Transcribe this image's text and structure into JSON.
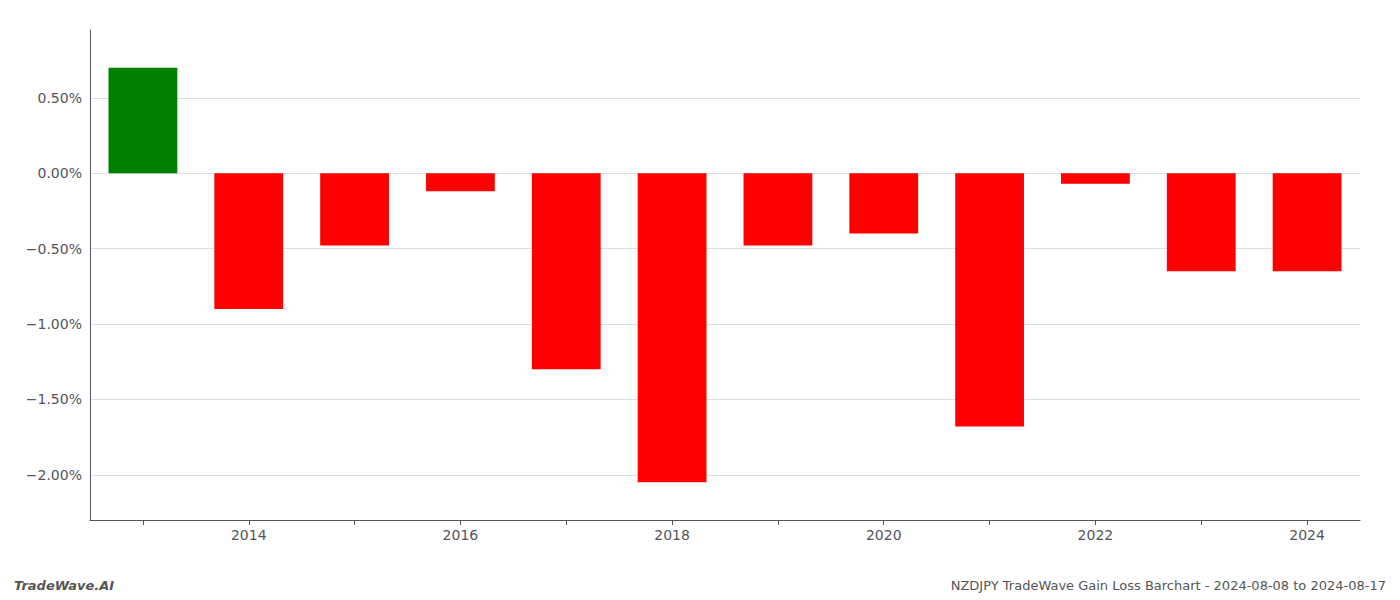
{
  "chart_data": {
    "type": "bar",
    "categories": [
      null,
      "2014",
      null,
      "2016",
      null,
      "2018",
      null,
      "2020",
      null,
      "2022",
      null,
      "2024"
    ],
    "values": [
      0.7,
      -0.9,
      -0.48,
      -0.12,
      -1.3,
      -2.05,
      -0.48,
      -0.4,
      -1.68,
      -0.07,
      -0.65,
      -0.65
    ],
    "colors": [
      "#008000",
      "#ff0000",
      "#ff0000",
      "#ff0000",
      "#ff0000",
      "#ff0000",
      "#ff0000",
      "#ff0000",
      "#ff0000",
      "#ff0000",
      "#ff0000",
      "#ff0000"
    ],
    "ylim": [
      -2.3,
      0.95
    ],
    "yticks": [
      {
        "value": -2.0,
        "label": "−2.00%"
      },
      {
        "value": -1.5,
        "label": "−1.50%"
      },
      {
        "value": -1.0,
        "label": "−1.00%"
      },
      {
        "value": -0.5,
        "label": "−0.50%"
      },
      {
        "value": 0.0,
        "label": "0.00%"
      },
      {
        "value": 0.5,
        "label": "0.50%"
      }
    ],
    "grid": true,
    "annotations": [
      "TradeWave.AI",
      "NZDJPY TradeWave Gain Loss Barchart - 2024-08-08 to 2024-08-17"
    ]
  }
}
